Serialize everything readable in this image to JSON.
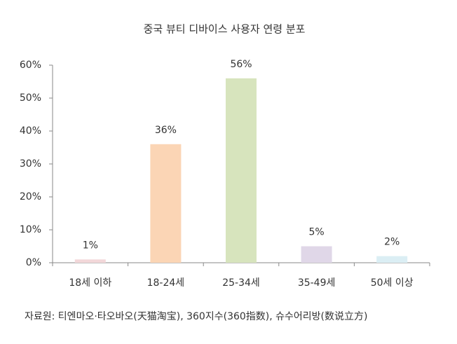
{
  "chart_data": {
    "type": "bar",
    "title": "중국 뷰티 디바이스 사용자 연령 분포",
    "categories": [
      "18세 이하",
      "18-24세",
      "25-34세",
      "35-49세",
      "50세 이상"
    ],
    "values": [
      1,
      36,
      56,
      5,
      2
    ],
    "value_labels": [
      "1%",
      "36%",
      "56%",
      "5%",
      "2%"
    ],
    "colors": [
      "#f2d7d9",
      "#fbd5b5",
      "#d7e4bd",
      "#e0d7e8",
      "#dbeef4"
    ],
    "ylim": [
      0,
      60
    ],
    "yticks": [
      {
        "value": 0,
        "label": "0%"
      },
      {
        "value": 10,
        "label": "10%"
      },
      {
        "value": 20,
        "label": "20%"
      },
      {
        "value": 30,
        "label": "30%"
      },
      {
        "value": 40,
        "label": "40%"
      },
      {
        "value": 50,
        "label": "50%"
      },
      {
        "value": 60,
        "label": "60%"
      }
    ],
    "grid": false,
    "source": "자료원: 티엔마오·타오바오(天猫淘宝), 360지수(360指数), 슈수어리방(数说立方)"
  }
}
